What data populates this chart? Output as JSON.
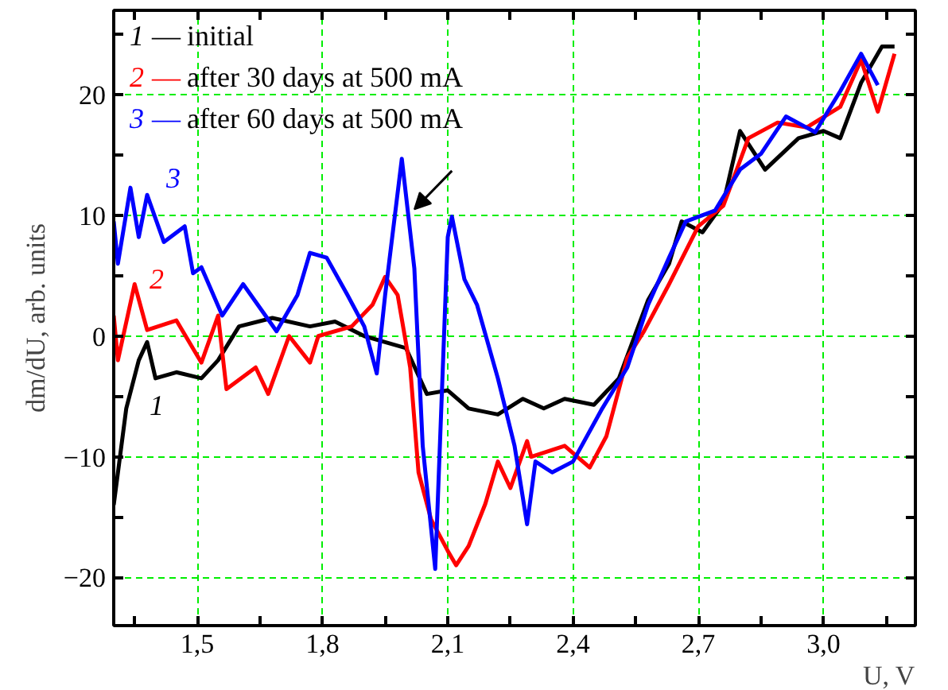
{
  "chart_data": {
    "type": "line",
    "xlabel": "U, V",
    "ylabel": "dm/dU, arb. units",
    "xlim": [
      1.3,
      3.22
    ],
    "ylim": [
      -24,
      27
    ],
    "xticks": [
      {
        "value": 1.35,
        "label": null
      },
      {
        "value": 1.5,
        "label": "1,5"
      },
      {
        "value": 1.65,
        "label": null
      },
      {
        "value": 1.8,
        "label": "1,8"
      },
      {
        "value": 1.95,
        "label": null
      },
      {
        "value": 2.1,
        "label": "2,1"
      },
      {
        "value": 2.25,
        "label": null
      },
      {
        "value": 2.4,
        "label": "2,4"
      },
      {
        "value": 2.55,
        "label": null
      },
      {
        "value": 2.7,
        "label": "2,7"
      },
      {
        "value": 2.85,
        "label": null
      },
      {
        "value": 3.0,
        "label": "3,0"
      },
      {
        "value": 3.15,
        "label": null
      }
    ],
    "yticks": [
      -20,
      {
        "value": -15,
        "label": null
      },
      -10,
      {
        "value": -5,
        "label": null
      },
      0,
      {
        "value": 5,
        "label": null
      },
      10,
      {
        "value": 15,
        "label": null
      },
      20,
      {
        "value": 25,
        "label": null
      }
    ],
    "grid": true,
    "legend": "top left",
    "marker": "none",
    "line_style": "solid",
    "series": [
      {
        "name": "1 — initial",
        "color": "#000000",
        "x": [
          1.3,
          1.33,
          1.36,
          1.38,
          1.4,
          1.45,
          1.51,
          1.55,
          1.6,
          1.68,
          1.77,
          1.83,
          1.9,
          1.95,
          2.0,
          2.05,
          2.1,
          2.15,
          2.22,
          2.28,
          2.33,
          2.38,
          2.45,
          2.51,
          2.58,
          2.63,
          2.66,
          2.71,
          2.76,
          2.8,
          2.86,
          2.94,
          3.0,
          3.04,
          3.09,
          3.14,
          3.17
        ],
        "values": [
          -14,
          -6,
          -2,
          -0.5,
          -3.5,
          -3,
          -3.5,
          -2,
          0.8,
          1.5,
          0.8,
          1.2,
          0,
          -0.5,
          -1,
          -4.8,
          -4.5,
          -6,
          -6.5,
          -5.2,
          -6,
          -5.2,
          -5.7,
          -3.5,
          3,
          6,
          9.5,
          8.6,
          11,
          17,
          13.8,
          16.4,
          17,
          16.4,
          21,
          24,
          24
        ]
      },
      {
        "name": "2 — after 30 days at 500 mA",
        "color": "#ff0000",
        "x": [
          1.3,
          1.31,
          1.35,
          1.38,
          1.45,
          1.51,
          1.55,
          1.57,
          1.64,
          1.67,
          1.72,
          1.77,
          1.79,
          1.87,
          1.92,
          1.95,
          1.98,
          2.01,
          2.03,
          2.06,
          2.1,
          2.12,
          2.15,
          2.19,
          2.22,
          2.25,
          2.29,
          2.3,
          2.38,
          2.44,
          2.48,
          2.53,
          2.57,
          2.63,
          2.7,
          2.76,
          2.82,
          2.89,
          2.96,
          3.04,
          3.09,
          3.13,
          3.17
        ],
        "values": [
          1.7,
          -2,
          4.3,
          0.5,
          1.3,
          -2.2,
          1.7,
          -4.4,
          -2.6,
          -4.8,
          0,
          -2.2,
          0,
          0.8,
          2.6,
          4.9,
          3.4,
          -2.6,
          -11.3,
          -15.2,
          -17.8,
          -19,
          -17.4,
          -13.9,
          -10.4,
          -12.6,
          -8.7,
          -10,
          -9.1,
          -10.9,
          -8.3,
          -1.8,
          0.4,
          4.3,
          9.1,
          10.8,
          16.4,
          17.7,
          17.3,
          19,
          22.9,
          18.6,
          23.4
        ]
      },
      {
        "name": "3 — after 60 days at 500 mA",
        "color": "#0000ff",
        "x": [
          1.3,
          1.31,
          1.34,
          1.36,
          1.38,
          1.42,
          1.47,
          1.49,
          1.51,
          1.56,
          1.61,
          1.69,
          1.74,
          1.77,
          1.81,
          1.86,
          1.9,
          1.93,
          1.95,
          1.99,
          2.02,
          2.04,
          2.07,
          2.1,
          2.11,
          2.14,
          2.17,
          2.22,
          2.26,
          2.29,
          2.31,
          2.35,
          2.4,
          2.47,
          2.53,
          2.58,
          2.63,
          2.67,
          2.74,
          2.8,
          2.85,
          2.91,
          2.98,
          3.04,
          3.09,
          3.13
        ],
        "values": [
          9.5,
          6,
          12.3,
          8.2,
          11.7,
          7.8,
          9.1,
          5.2,
          5.7,
          1.7,
          4.3,
          0.4,
          3.4,
          6.9,
          6.5,
          3.4,
          0.8,
          -3.1,
          3.4,
          14.7,
          5.6,
          -9.1,
          -19.3,
          8.2,
          9.9,
          4.7,
          2.6,
          -3.5,
          -9.1,
          -15.6,
          -10.4,
          -11.3,
          -10.4,
          -6,
          -2.6,
          2.6,
          6.5,
          9.5,
          10.4,
          13.8,
          15.1,
          18.2,
          16.9,
          20.3,
          23.4,
          20.8
        ]
      }
    ],
    "annotations": [
      "1",
      "2",
      "3"
    ]
  }
}
